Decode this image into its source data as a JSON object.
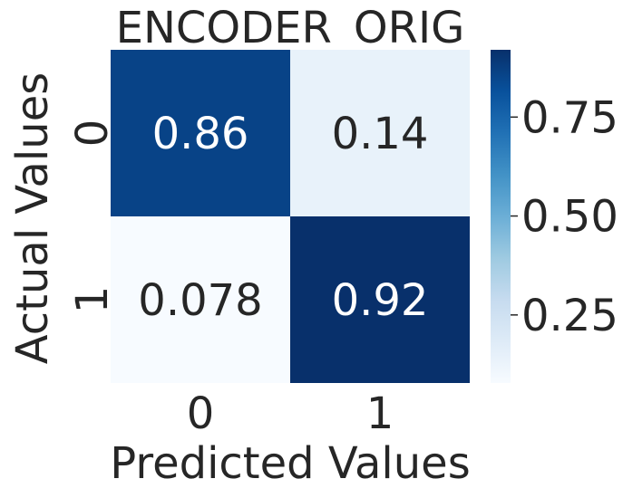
{
  "chart_data": {
    "type": "heatmap",
    "title": "ENCODER_ORIG",
    "xlabel": "Predicted Values",
    "ylabel": "Actual Values",
    "x_categories": [
      "0",
      "1"
    ],
    "y_categories": [
      "0",
      "1"
    ],
    "values": [
      [
        0.86,
        0.14
      ],
      [
        0.078,
        0.92
      ]
    ],
    "cell_labels": [
      [
        "0.86",
        "0.14"
      ],
      [
        "0.078",
        "0.92"
      ]
    ],
    "colormap": "Blues",
    "colorbar": {
      "range": [
        0.078,
        0.92
      ],
      "ticks": [
        0.25,
        0.5,
        0.75
      ],
      "tick_labels": [
        "0.25",
        "0.50",
        "0.75"
      ]
    }
  }
}
